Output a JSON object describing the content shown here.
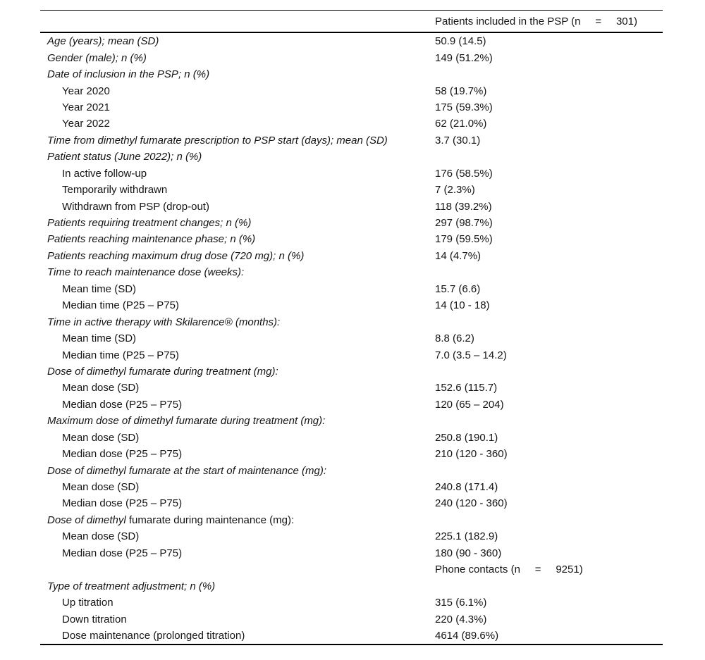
{
  "meta": {
    "background": "#ffffff",
    "text_color": "#141414",
    "rule_color": "#000000"
  },
  "table": {
    "header": {
      "value": "Patients included in the PSP (n     =     301)"
    },
    "rows": [
      {
        "label": "Age (years); mean (SD)",
        "italic": true,
        "indent": 0,
        "value": "50.9 (14.5)"
      },
      {
        "label": "Gender (male); n (%)",
        "italic": true,
        "indent": 0,
        "value": "149 (51.2%)"
      },
      {
        "label": "Date of inclusion in the PSP; n (%)",
        "italic": true,
        "indent": 0,
        "value": ""
      },
      {
        "label": "Year 2020",
        "italic": false,
        "indent": 1,
        "value": "58 (19.7%)"
      },
      {
        "label": "Year 2021",
        "italic": false,
        "indent": 1,
        "value": "175 (59.3%)"
      },
      {
        "label": "Year 2022",
        "italic": false,
        "indent": 1,
        "value": "62 (21.0%)"
      },
      {
        "label": "Time from dimethyl fumarate prescription to PSP start (days); mean (SD)",
        "italic": true,
        "indent": 0,
        "value": "3.7 (30.1)"
      },
      {
        "label": "Patient status (June 2022); n (%)",
        "italic": true,
        "indent": 0,
        "value": ""
      },
      {
        "label": "In active follow-up",
        "italic": false,
        "indent": 1,
        "value": "176 (58.5%)"
      },
      {
        "label": "Temporarily withdrawn",
        "italic": false,
        "indent": 1,
        "value": "7 (2.3%)"
      },
      {
        "label": "Withdrawn from PSP (drop-out)",
        "italic": false,
        "indent": 1,
        "value": "118 (39.2%)"
      },
      {
        "label": "Patients requiring treatment changes; n (%)",
        "italic": true,
        "indent": 0,
        "value": "297 (98.7%)"
      },
      {
        "label": "Patients reaching maintenance phase; n (%)",
        "italic": true,
        "indent": 0,
        "value": "179 (59.5%)"
      },
      {
        "label": "Patients reaching maximum drug dose (720 mg); n (%)",
        "italic": true,
        "indent": 0,
        "value": "14 (4.7%)"
      },
      {
        "label": "Time to reach maintenance dose (weeks):",
        "italic": true,
        "indent": 0,
        "value": ""
      },
      {
        "label": "Mean time (SD)",
        "italic": false,
        "indent": 1,
        "value": "15.7 (6.6)"
      },
      {
        "label": "Median time (P25 – P75)",
        "italic": false,
        "indent": 1,
        "value": "14 (10 - 18)"
      },
      {
        "label": "Time in active therapy with Skilarence® (months):",
        "italic": true,
        "indent": 0,
        "value": ""
      },
      {
        "label": "Mean time (SD)",
        "italic": false,
        "indent": 1,
        "value": "8.8 (6.2)"
      },
      {
        "label": "Median time (P25 – P75)",
        "italic": false,
        "indent": 1,
        "value": "7.0 (3.5 – 14.2)"
      },
      {
        "label": "Dose of dimethyl fumarate during treatment (mg):",
        "italic": true,
        "indent": 0,
        "value": ""
      },
      {
        "label": "Mean dose (SD)",
        "italic": false,
        "indent": 1,
        "value": "152.6 (115.7)"
      },
      {
        "label": "Median dose (P25 – P75)",
        "italic": false,
        "indent": 1,
        "value": "120 (65 – 204)"
      },
      {
        "label": "Maximum dose of dimethyl fumarate during treatment (mg):",
        "italic": true,
        "indent": 0,
        "value": ""
      },
      {
        "label": "Mean dose (SD)",
        "italic": false,
        "indent": 1,
        "value": "250.8 (190.1)"
      },
      {
        "label": "Median dose (P25 – P75)",
        "italic": false,
        "indent": 1,
        "value": "210 (120 - 360)"
      },
      {
        "label": "Dose of dimethyl fumarate at the start of maintenance (mg):",
        "italic": true,
        "indent": 0,
        "value": ""
      },
      {
        "label": "Mean dose (SD)",
        "italic": false,
        "indent": 1,
        "value": "240.8 (171.4)"
      },
      {
        "label": "Median dose (P25 – P75)",
        "italic": false,
        "indent": 1,
        "value": "240 (120 - 360)"
      },
      {
        "label_parts": [
          {
            "text": "Dose of dimethyl",
            "italic": true
          },
          {
            "text": " fumarate during maintenance (mg):",
            "italic": false
          }
        ],
        "indent": 0,
        "value": ""
      },
      {
        "label": "Mean dose (SD)",
        "italic": false,
        "indent": 1,
        "value": "225.1 (182.9)"
      },
      {
        "label": "Median dose (P25 – P75)",
        "italic": false,
        "indent": 1,
        "value": "180 (90 - 360)"
      },
      {
        "label": "",
        "italic": false,
        "indent": 0,
        "value": "Phone contacts (n     =     9251)"
      },
      {
        "label": "Type of treatment adjustment; n (%)",
        "italic": true,
        "indent": 0,
        "value": ""
      },
      {
        "label": "Up titration",
        "italic": false,
        "indent": 1,
        "value": "315 (6.1%)"
      },
      {
        "label": "Down titration",
        "italic": false,
        "indent": 1,
        "value": "220 (4.3%)"
      },
      {
        "label": "Dose maintenance (prolonged titration)",
        "italic": false,
        "indent": 1,
        "value": "4614 (89.6%)"
      }
    ]
  }
}
